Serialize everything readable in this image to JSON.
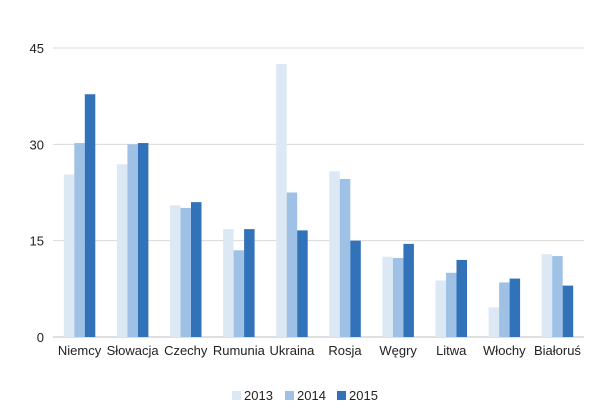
{
  "chart_data": {
    "type": "bar",
    "categories": [
      "Niemcy",
      "Słowacja",
      "Czechy",
      "Rumunia",
      "Ukraina",
      "Rosja",
      "Węgry",
      "Litwa",
      "Włochy",
      "Białoruś"
    ],
    "series": [
      {
        "name": "2013",
        "color": "#dde8f5",
        "values": [
          25.3,
          26.9,
          20.5,
          16.8,
          42.5,
          25.8,
          12.5,
          8.8,
          4.6,
          12.9
        ]
      },
      {
        "name": "2014",
        "color": "#9fc1e6",
        "values": [
          30.2,
          30.0,
          20.1,
          13.5,
          22.5,
          24.6,
          12.3,
          10.0,
          8.5,
          12.6
        ]
      },
      {
        "name": "2015",
        "color": "#3272b8",
        "values": [
          37.8,
          30.2,
          21.0,
          16.8,
          16.6,
          15.0,
          14.5,
          12.0,
          9.1,
          8.0
        ]
      }
    ],
    "yticks": [
      "0",
      "15",
      "30",
      "45"
    ],
    "ylim": [
      0,
      45
    ],
    "grid": true,
    "legend_position": "bottom"
  }
}
